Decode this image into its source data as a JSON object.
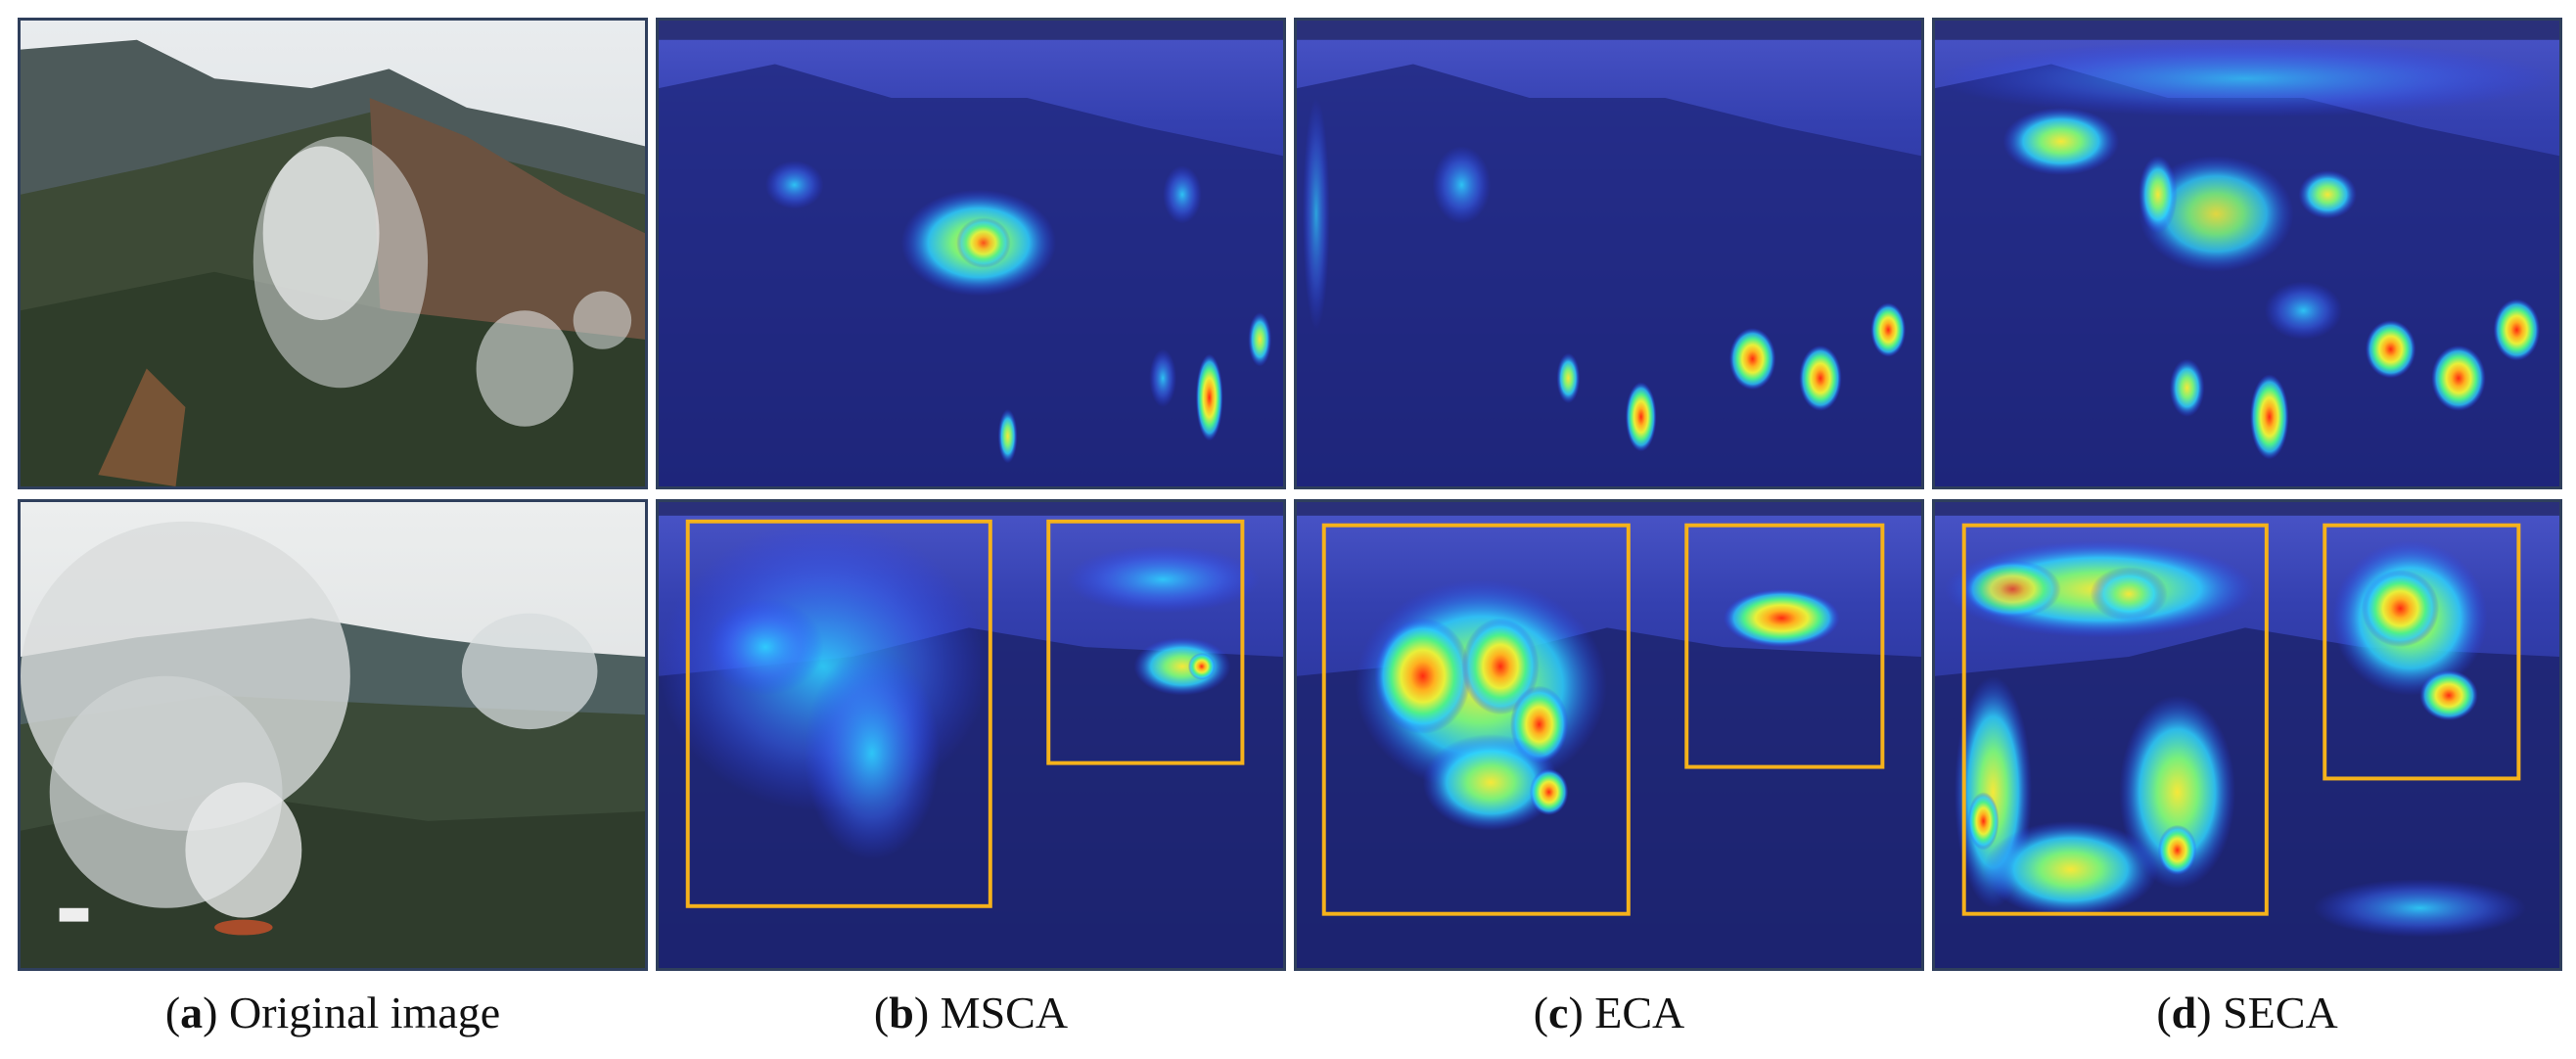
{
  "columns": [
    {
      "letter": "a",
      "name": "Original image"
    },
    {
      "letter": "b",
      "name": "MSCA"
    },
    {
      "letter": "c",
      "name": "ECA"
    },
    {
      "letter": "d",
      "name": "SECA"
    }
  ],
  "rows": [
    "smoke-scene-1",
    "smoke-scene-2"
  ],
  "colors": {
    "panel_border": "#2f3f5c",
    "heatmap_base": "#1a1f8c",
    "box_outline": "#f5b21b",
    "heat_cold": "#2a3cff",
    "heat_cool": "#2fd4ff",
    "heat_mid": "#5cf27a",
    "heat_warm": "#f6e83a",
    "heat_hot": "#ff3a1a"
  }
}
